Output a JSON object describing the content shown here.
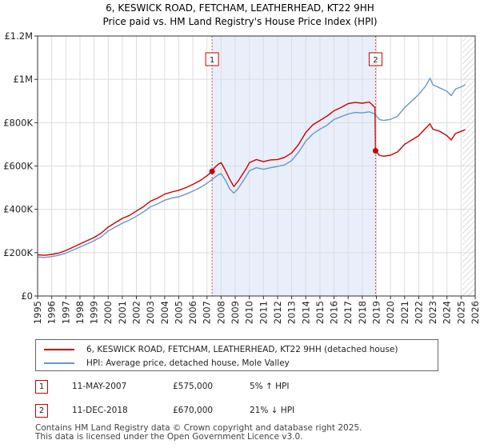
{
  "chart_data": {
    "type": "line",
    "title": "6, KESWICK ROAD, FETCHAM, LEATHERHEAD, KT22 9HH",
    "subtitle": "Price paid vs. HM Land Registry's House Price Index (HPI)",
    "xlim": [
      1995,
      2026
    ],
    "ylim": [
      0,
      1200000
    ],
    "y_ticks": [
      {
        "value": 0,
        "label": "£0"
      },
      {
        "value": 200000,
        "label": "£200K"
      },
      {
        "value": 400000,
        "label": "£400K"
      },
      {
        "value": 600000,
        "label": "£600K"
      },
      {
        "value": 800000,
        "label": "£800K"
      },
      {
        "value": 1000000,
        "label": "£1M"
      },
      {
        "value": 1200000,
        "label": "£1.2M"
      }
    ],
    "x_ticks": [
      "1995",
      "1996",
      "1997",
      "1998",
      "1999",
      "2000",
      "2001",
      "2002",
      "2003",
      "2004",
      "2005",
      "2006",
      "2007",
      "2008",
      "2009",
      "2010",
      "2011",
      "2012",
      "2013",
      "2014",
      "2015",
      "2016",
      "2017",
      "2018",
      "2019",
      "2020",
      "2021",
      "2022",
      "2023",
      "2024",
      "2025",
      "2026"
    ],
    "shaded_region": [
      2007.36,
      2018.94
    ],
    "forecast_start": 2025.1,
    "series": [
      {
        "name": "6, KESWICK ROAD, FETCHAM, LEATHERHEAD, KT22 9HH (detached house)",
        "color": "#cc0000",
        "x": [
          1995.0,
          1995.5,
          1996.0,
          1996.5,
          1997.0,
          1997.5,
          1998.0,
          1998.5,
          1999.0,
          1999.5,
          2000.0,
          2000.5,
          2001.0,
          2001.5,
          2002.0,
          2002.5,
          2003.0,
          2003.5,
          2004.0,
          2004.5,
          2005.0,
          2005.5,
          2006.0,
          2006.5,
          2007.0,
          2007.36,
          2007.5,
          2007.8,
          2008.0,
          2008.3,
          2008.6,
          2008.9,
          2009.2,
          2009.5,
          2009.8,
          2010.0,
          2010.5,
          2011.0,
          2011.5,
          2012.0,
          2012.5,
          2013.0,
          2013.5,
          2014.0,
          2014.5,
          2015.0,
          2015.5,
          2016.0,
          2016.5,
          2017.0,
          2017.5,
          2018.0,
          2018.5,
          2018.9,
          2018.94,
          2019.2,
          2019.5,
          2020.0,
          2020.5,
          2021.0,
          2021.5,
          2022.0,
          2022.5,
          2022.8,
          2023.0,
          2023.5,
          2024.0,
          2024.3,
          2024.6,
          2025.0,
          2025.3
        ],
        "values": [
          190000,
          188000,
          192000,
          198000,
          210000,
          225000,
          240000,
          255000,
          270000,
          290000,
          318000,
          338000,
          358000,
          372000,
          392000,
          412000,
          438000,
          452000,
          470000,
          480000,
          488000,
          500000,
          515000,
          532000,
          555000,
          575000,
          590000,
          608000,
          615000,
          580000,
          540000,
          505000,
          530000,
          560000,
          590000,
          615000,
          630000,
          620000,
          628000,
          630000,
          640000,
          660000,
          700000,
          755000,
          790000,
          810000,
          830000,
          855000,
          870000,
          888000,
          893000,
          890000,
          895000,
          870000,
          670000,
          650000,
          645000,
          650000,
          665000,
          700000,
          720000,
          740000,
          775000,
          795000,
          770000,
          760000,
          740000,
          720000,
          750000,
          760000,
          768000
        ]
      },
      {
        "name": "HPI: Average price, detached house, Mole Valley",
        "color": "#6699cc",
        "x": [
          1995.0,
          1995.5,
          1996.0,
          1996.5,
          1997.0,
          1997.5,
          1998.0,
          1998.5,
          1999.0,
          1999.5,
          2000.0,
          2000.5,
          2001.0,
          2001.5,
          2002.0,
          2002.5,
          2003.0,
          2003.5,
          2004.0,
          2004.5,
          2005.0,
          2005.5,
          2006.0,
          2006.5,
          2007.0,
          2007.5,
          2007.8,
          2008.0,
          2008.3,
          2008.6,
          2008.9,
          2009.2,
          2009.5,
          2009.8,
          2010.0,
          2010.5,
          2011.0,
          2011.5,
          2012.0,
          2012.5,
          2013.0,
          2013.5,
          2014.0,
          2014.5,
          2015.0,
          2015.5,
          2016.0,
          2016.5,
          2017.0,
          2017.5,
          2018.0,
          2018.5,
          2018.9,
          2019.2,
          2019.5,
          2020.0,
          2020.5,
          2021.0,
          2021.5,
          2022.0,
          2022.5,
          2022.8,
          2023.0,
          2023.5,
          2024.0,
          2024.3,
          2024.6,
          2025.0,
          2025.3
        ],
        "values": [
          180000,
          178000,
          182000,
          188000,
          198000,
          212000,
          226000,
          240000,
          255000,
          273000,
          300000,
          318000,
          336000,
          350000,
          368000,
          388000,
          412000,
          425000,
          442000,
          452000,
          458000,
          470000,
          484000,
          500000,
          520000,
          545000,
          560000,
          565000,
          535000,
          495000,
          475000,
          495000,
          525000,
          555000,
          578000,
          592000,
          585000,
          592000,
          598000,
          605000,
          625000,
          665000,
          715000,
          748000,
          770000,
          788000,
          815000,
          828000,
          840000,
          847000,
          845000,
          850000,
          840000,
          815000,
          810000,
          815000,
          830000,
          870000,
          900000,
          930000,
          970000,
          1005000,
          975000,
          960000,
          945000,
          925000,
          955000,
          965000,
          975000
        ]
      }
    ],
    "markers": [
      {
        "id": "1",
        "x": 2007.36,
        "y": 575000
      },
      {
        "id": "2",
        "x": 2018.94,
        "y": 670000
      }
    ]
  },
  "legend": {
    "property_label": "6, KESWICK ROAD, FETCHAM, LEATHERHEAD, KT22 9HH (detached house)",
    "hpi_label": "HPI: Average price, detached house, Mole Valley"
  },
  "sales": [
    {
      "num": "1",
      "date": "11-MAY-2007",
      "price": "£575,000",
      "hpi": "5% ↑ HPI"
    },
    {
      "num": "2",
      "date": "11-DEC-2018",
      "price": "£670,000",
      "hpi": "21% ↓ HPI"
    }
  ],
  "footer": {
    "line1": "Contains HM Land Registry data © Crown copyright and database right 2025.",
    "line2": "This data is licensed under the Open Government Licence v3.0."
  },
  "colors": {
    "property": "#cc0000",
    "hpi": "#6699cc",
    "shade": "#e8eefa"
  }
}
